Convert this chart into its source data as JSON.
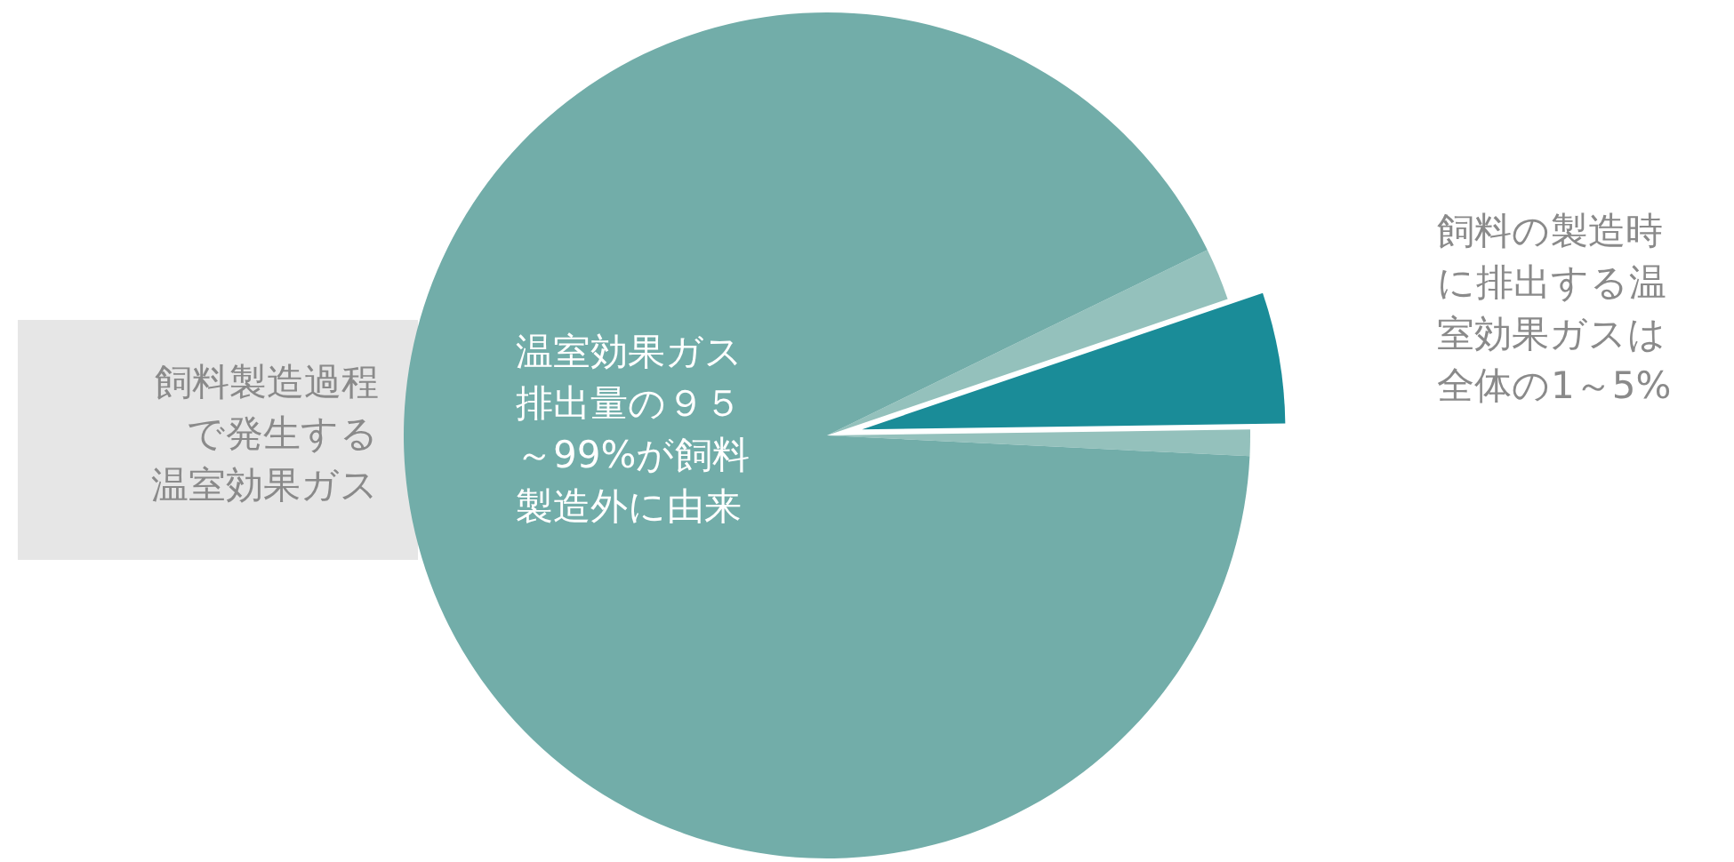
{
  "chart_data": {
    "type": "pie",
    "categories": [
      null,
      null,
      null,
      null
    ],
    "values": [
      2,
      5,
      1,
      92
    ],
    "colors": [
      "#94c1bc",
      "#1a8c98",
      "#94c1bc",
      "#72ada9"
    ],
    "annotations": [
      "温室効果ガス排出量の９５～99%が飼料製造外に由来",
      "飼料製造過程で発生する温室効果ガス",
      "飼料の製造時に排出する温室効果ガスは全体の1～5%"
    ]
  }
}
